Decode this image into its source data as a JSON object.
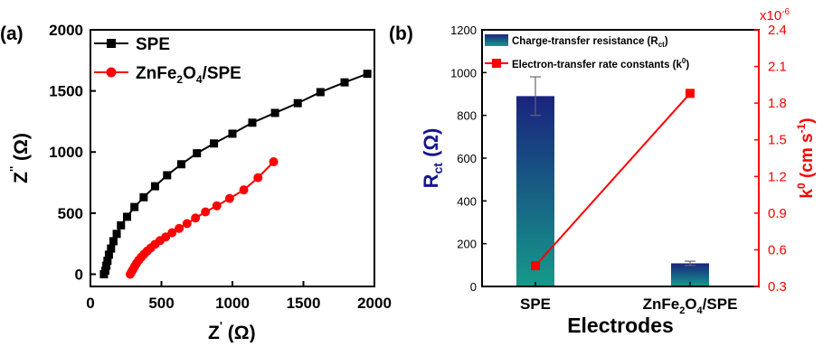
{
  "colors": {
    "black": "#000000",
    "red": "#ff0000",
    "navy": "#16168a",
    "bar_top": "#1a237e",
    "bar_bottom": "#159a8a"
  },
  "panel_a": {
    "label": "(a)",
    "xlabel_main": "Z",
    "xlabel_prime": "'",
    "xlabel_unit": " (Ω)",
    "ylabel_main": "Z",
    "ylabel_prime": "''",
    "ylabel_unit": " (Ω)",
    "legend": [
      {
        "name_parts": [
          "SPE"
        ]
      },
      {
        "name_parts": [
          "ZnFe",
          "2",
          "O",
          "4",
          "/SPE"
        ]
      }
    ]
  },
  "panel_b": {
    "label": "(b)",
    "xlabel": "Electrodes",
    "ylabel_left_main": "R",
    "ylabel_left_sub": "ct",
    "ylabel_left_unit": " (Ω)",
    "ylabel_right_main": "k",
    "ylabel_right_sup": "0",
    "ylabel_right_unit": " (cm s",
    "ylabel_right_unit_sup": "-1",
    "ylabel_right_close": ")",
    "right_multiplier": "x10",
    "right_multiplier_sup": "-6",
    "legend_bar": {
      "text": "Charge-transfer resistance (R",
      "sub": "ct",
      "close": ")"
    },
    "legend_line": {
      "text": "Electron-transfer rate constants (k",
      "sup": "0",
      "close": ")"
    },
    "category_labels": [
      {
        "parts": [
          "SPE"
        ]
      },
      {
        "parts": [
          "ZnFe",
          "2",
          "O",
          "4",
          "/SPE"
        ]
      }
    ]
  },
  "chart_data": [
    {
      "type": "scatter",
      "xlim": [
        0,
        2000
      ],
      "ylim": [
        -100,
        2000
      ],
      "xticks": [
        0,
        500,
        1000,
        1500,
        2000
      ],
      "yticks": [
        0,
        500,
        1000,
        1500,
        2000
      ],
      "series": [
        {
          "name": "SPE",
          "x": [
            95,
            105,
            112,
            120,
            130,
            145,
            162,
            185,
            215,
            258,
            310,
            375,
            455,
            540,
            640,
            750,
            870,
            1000,
            1140,
            1300,
            1460,
            1620,
            1790,
            1950
          ],
          "y": [
            0,
            30,
            70,
            110,
            160,
            210,
            270,
            330,
            400,
            470,
            550,
            630,
            720,
            810,
            900,
            990,
            1070,
            1150,
            1240,
            1320,
            1400,
            1490,
            1570,
            1640
          ]
        },
        {
          "name": "ZnFe2O4/SPE",
          "x": [
            280,
            290,
            300,
            312,
            325,
            340,
            358,
            378,
            400,
            425,
            455,
            490,
            530,
            575,
            625,
            680,
            740,
            810,
            890,
            980,
            1080,
            1180,
            1290
          ],
          "y": [
            0,
            20,
            40,
            65,
            90,
            115,
            140,
            165,
            190,
            215,
            245,
            275,
            305,
            340,
            375,
            415,
            460,
            510,
            560,
            620,
            690,
            790,
            920
          ]
        }
      ]
    },
    {
      "type": "bar",
      "categories": [
        "SPE",
        "ZnFe2O4/SPE"
      ],
      "ylim_left": [
        0,
        1200
      ],
      "yticks_left": [
        0,
        200,
        400,
        600,
        800,
        1000,
        1200
      ],
      "ylim_right": [
        0.3,
        2.4
      ],
      "yticks_right": [
        "0.3",
        "0.6",
        "0.9",
        "1.2",
        "1.5",
        "1.8",
        "2.1",
        "2.4"
      ],
      "series": [
        {
          "name": "Charge-transfer resistance (Rct)",
          "kind": "bar",
          "axis": "left",
          "values": [
            890,
            108
          ],
          "errors": [
            90,
            10
          ]
        },
        {
          "name": "Electron-transfer rate constants (k0)",
          "kind": "line",
          "axis": "right",
          "values": [
            0.47,
            1.88
          ]
        }
      ]
    }
  ]
}
